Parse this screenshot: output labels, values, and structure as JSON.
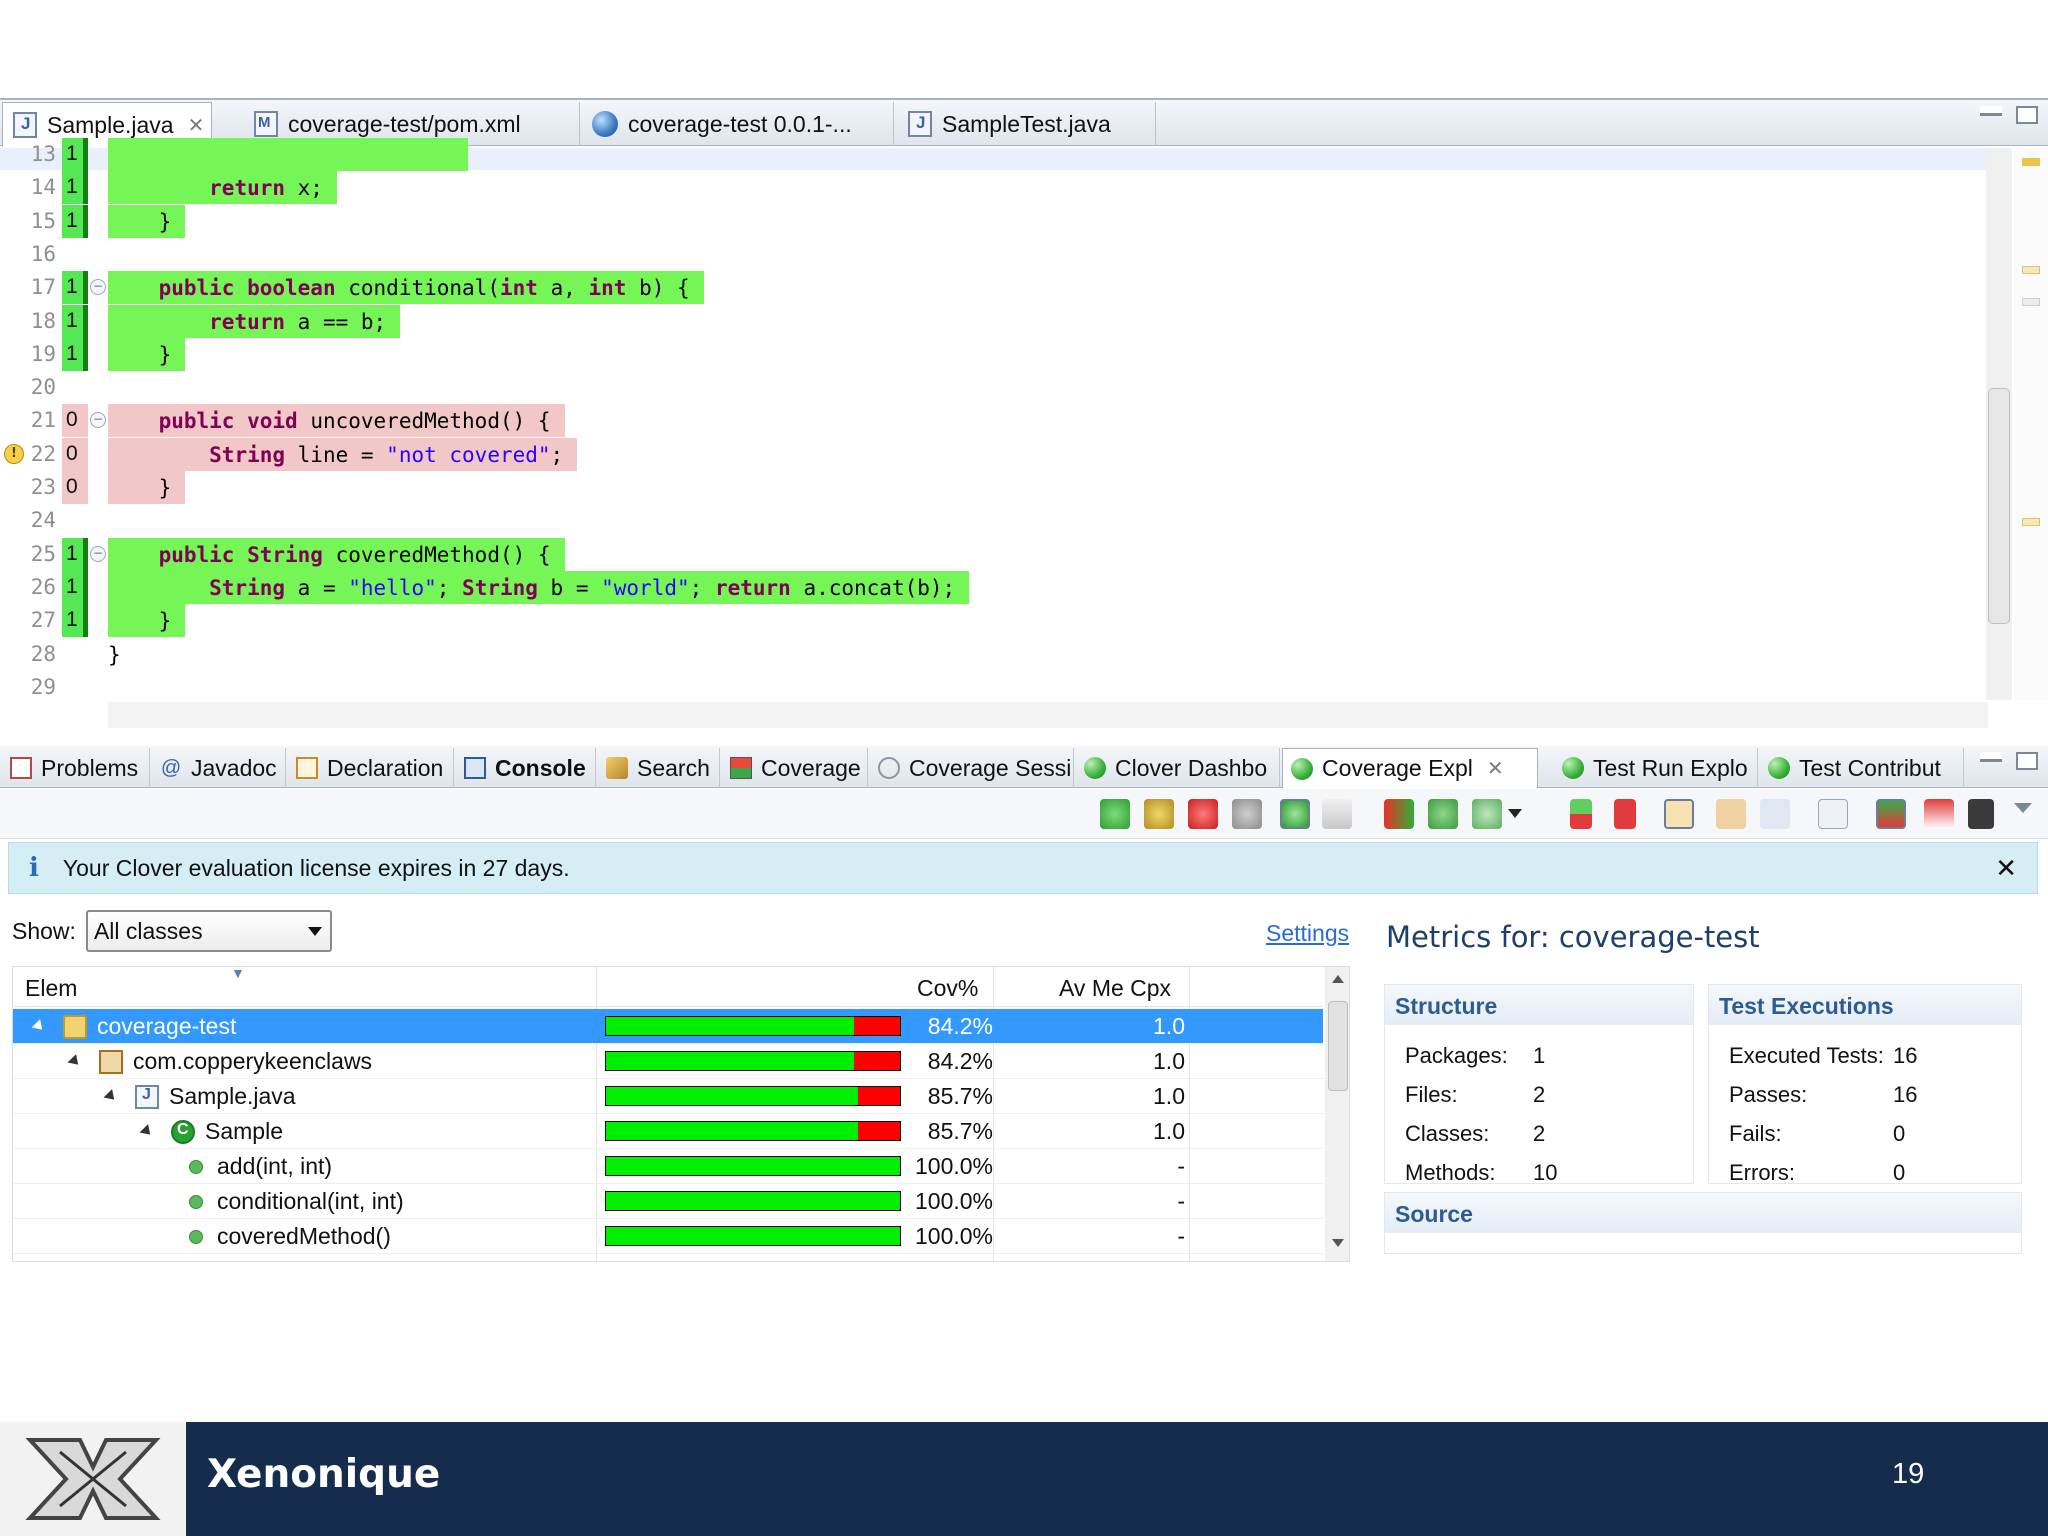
{
  "editor": {
    "tabs": [
      {
        "label": "Sample.java",
        "icon": "java-file-icon",
        "active": true,
        "closable": true
      },
      {
        "label": "coverage-test/pom.xml",
        "icon": "maven-file-icon"
      },
      {
        "label": "coverage-test 0.0.1-...",
        "icon": "globe-icon"
      },
      {
        "label": "SampleTest.java",
        "icon": "java-file-icon"
      }
    ],
    "lines": [
      {
        "num": "13",
        "hits": "1",
        "status": "covered",
        "code": "",
        "fold": false
      },
      {
        "num": "14",
        "hits": "1",
        "status": "covered",
        "code": "        return x;",
        "fold": false
      },
      {
        "num": "15",
        "hits": "1",
        "status": "covered",
        "code": "    }",
        "fold": false
      },
      {
        "num": "16",
        "hits": "",
        "status": "none",
        "code": "",
        "fold": false
      },
      {
        "num": "17",
        "hits": "1",
        "status": "covered",
        "code": "    public boolean conditional(int a, int b) {",
        "fold": true
      },
      {
        "num": "18",
        "hits": "1",
        "status": "covered",
        "code": "        return a == b;",
        "fold": false
      },
      {
        "num": "19",
        "hits": "1",
        "status": "covered",
        "code": "    }",
        "fold": false
      },
      {
        "num": "20",
        "hits": "",
        "status": "none",
        "code": "",
        "fold": false
      },
      {
        "num": "21",
        "hits": "0",
        "status": "uncovered",
        "code": "    public void uncoveredMethod() {",
        "fold": true
      },
      {
        "num": "22",
        "hits": "0",
        "status": "uncovered",
        "code": "        String line = \"not covered\";",
        "fold": false,
        "warning": true
      },
      {
        "num": "23",
        "hits": "0",
        "status": "uncovered",
        "code": "    }",
        "fold": false
      },
      {
        "num": "24",
        "hits": "",
        "status": "none",
        "code": "",
        "fold": false
      },
      {
        "num": "25",
        "hits": "1",
        "status": "covered",
        "code": "    public String coveredMethod() {",
        "fold": true
      },
      {
        "num": "26",
        "hits": "1",
        "status": "covered",
        "code": "        String a = \"hello\"; String b = \"world\"; return a.concat(b);",
        "fold": false
      },
      {
        "num": "27",
        "hits": "1",
        "status": "covered",
        "code": "    }",
        "fold": false
      },
      {
        "num": "28",
        "hits": "",
        "status": "none",
        "code": "}",
        "fold": false
      },
      {
        "num": "29",
        "hits": "",
        "status": "none",
        "code": "",
        "fold": false
      }
    ]
  },
  "views": {
    "tabs": [
      {
        "label": "Problems",
        "icon": "problems-icon"
      },
      {
        "label": "Javadoc",
        "icon": "javadoc-icon"
      },
      {
        "label": "Declaration",
        "icon": "declaration-icon"
      },
      {
        "label": "Console",
        "icon": "console-icon",
        "bold": true
      },
      {
        "label": "Search",
        "icon": "search-icon"
      },
      {
        "label": "Coverage",
        "icon": "coverage-icon"
      },
      {
        "label": "Coverage Sessi",
        "icon": "coverage-session-icon"
      },
      {
        "label": "Clover Dashbo",
        "icon": "clover-icon"
      },
      {
        "label": "Coverage Expl",
        "icon": "clover-icon",
        "active": true,
        "closable": true
      },
      {
        "label": "Test Run Explo",
        "icon": "clover-icon"
      },
      {
        "label": "Test Contribut",
        "icon": "clover-icon"
      }
    ],
    "info_message": "Your Clover evaluation license expires in 27 days.",
    "show_label": "Show:",
    "show_value": "All classes",
    "settings_link": "Settings",
    "columns": {
      "elem": "Elem",
      "cov": "Cov%",
      "cpx": "Av Me Cpx"
    },
    "rows": [
      {
        "name": "coverage-test",
        "icon": "project-icon",
        "level": 0,
        "twisty": true,
        "coverage": 0.842,
        "cov_text": "84.2%",
        "cpx": "1.0",
        "selected": true
      },
      {
        "name": "com.copperykeenclaws",
        "icon": "package-icon",
        "level": 1,
        "twisty": true,
        "coverage": 0.842,
        "cov_text": "84.2%",
        "cpx": "1.0"
      },
      {
        "name": "Sample.java",
        "icon": "java-file-icon",
        "level": 2,
        "twisty": true,
        "coverage": 0.857,
        "cov_text": "85.7%",
        "cpx": "1.0"
      },
      {
        "name": "Sample",
        "icon": "class-icon",
        "level": 3,
        "twisty": true,
        "coverage": 0.857,
        "cov_text": "85.7%",
        "cpx": "1.0"
      },
      {
        "name": "add(int, int)",
        "icon": "method-icon",
        "level": 4,
        "twisty": false,
        "coverage": 1.0,
        "cov_text": "100.0%",
        "cpx": "-"
      },
      {
        "name": "conditional(int, int)",
        "icon": "method-icon",
        "level": 4,
        "twisty": false,
        "coverage": 1.0,
        "cov_text": "100.0%",
        "cpx": "-"
      },
      {
        "name": "coveredMethod()",
        "icon": "method-icon",
        "level": 4,
        "twisty": false,
        "coverage": 1.0,
        "cov_text": "100.0%",
        "cpx": "-"
      }
    ],
    "metrics": {
      "title": "Metrics for: coverage-test",
      "structure": {
        "heading": "Structure",
        "items": [
          {
            "label": "Packages:",
            "value": "1"
          },
          {
            "label": "Files:",
            "value": "2"
          },
          {
            "label": "Classes:",
            "value": "2"
          },
          {
            "label": "Methods:",
            "value": "10"
          }
        ]
      },
      "tests": {
        "heading": "Test Executions",
        "items": [
          {
            "label": "Executed Tests:",
            "value": "16"
          },
          {
            "label": "Passes:",
            "value": "16"
          },
          {
            "label": "Fails:",
            "value": "0"
          },
          {
            "label": "Errors:",
            "value": "0"
          }
        ]
      },
      "source": {
        "heading": "Source"
      }
    }
  },
  "footer": {
    "brand": "Xenonique",
    "page": "19"
  },
  "colors": {
    "covered": "#76f556",
    "uncovered": "#f2c7c7",
    "selection": "#3399ff",
    "footer": "#162c4c"
  }
}
